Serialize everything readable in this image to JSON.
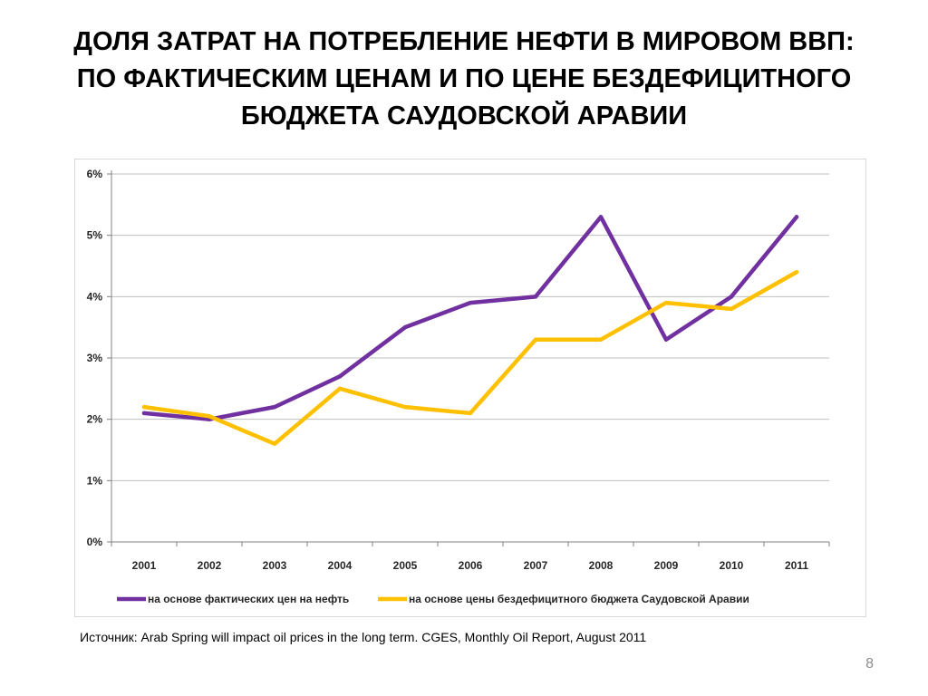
{
  "slide": {
    "title_lines": [
      "ДОЛЯ ЗАТРАТ НА ПОТРЕБЛЕНИЕ НЕФТИ В МИРОВОМ ВВП:",
      "ПО ФАКТИЧЕСКИМ ЦЕНАМ И ПО ЦЕНЕ БЕЗДЕФИЦИТНОГО",
      "БЮДЖЕТА САУДОВСКОЙ АРАВИИ"
    ],
    "source": "Источник: Arab Spring will impact oil prices in the long term. CGES, Monthly Oil Report, August 2011",
    "page_number": "8"
  },
  "chart_data": {
    "type": "line",
    "categories": [
      "2001",
      "2002",
      "2003",
      "2004",
      "2005",
      "2006",
      "2007",
      "2008",
      "2009",
      "2010",
      "2011"
    ],
    "y_ticks": [
      "0%",
      "1%",
      "2%",
      "3%",
      "4%",
      "5%",
      "6%"
    ],
    "ylim": [
      0,
      6
    ],
    "grid": true,
    "legend_position": "bottom",
    "series": [
      {
        "name": "на основе фактических цен на нефть",
        "color": "#7030a0",
        "values": [
          2.1,
          2.0,
          2.2,
          2.7,
          3.5,
          3.9,
          4.0,
          5.3,
          3.3,
          4.0,
          5.3
        ]
      },
      {
        "name": "на основе цены бездефицитного бюджета Саудовской Аравии",
        "color": "#ffc000",
        "values": [
          2.2,
          2.05,
          1.6,
          2.5,
          2.2,
          2.1,
          3.3,
          3.3,
          3.9,
          3.8,
          4.4
        ]
      }
    ]
  }
}
